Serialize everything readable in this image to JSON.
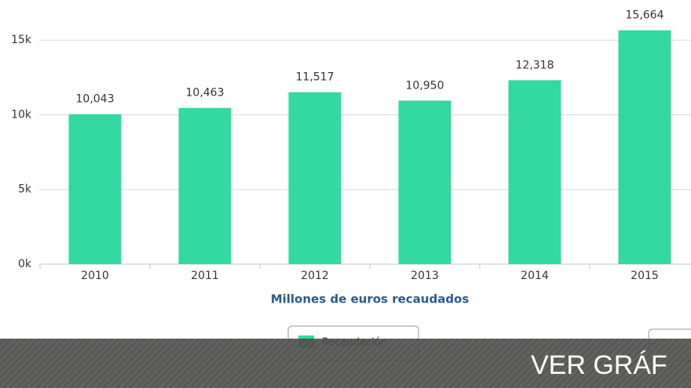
{
  "chart_data": {
    "type": "bar",
    "categories": [
      "2010",
      "2011",
      "2012",
      "2013",
      "2014",
      "2015"
    ],
    "series": [
      {
        "name": "Recaudación",
        "color": "#33d9a0",
        "values": [
          10043,
          10463,
          11517,
          10950,
          12318,
          15664
        ],
        "value_labels": [
          "10,043",
          "10,463",
          "11,517",
          "10,950",
          "12,318",
          "15,664"
        ]
      }
    ],
    "x_label": "Millones de euros recaudados",
    "ylim": [
      0,
      17500
    ],
    "yticks": [
      {
        "value": 0,
        "label": "0k"
      },
      {
        "value": 5000,
        "label": "5k"
      },
      {
        "value": 10000,
        "label": "10k"
      },
      {
        "value": 15000,
        "label": "15k"
      }
    ],
    "grid": true
  },
  "overlay": {
    "button": "VER GRÁF"
  }
}
